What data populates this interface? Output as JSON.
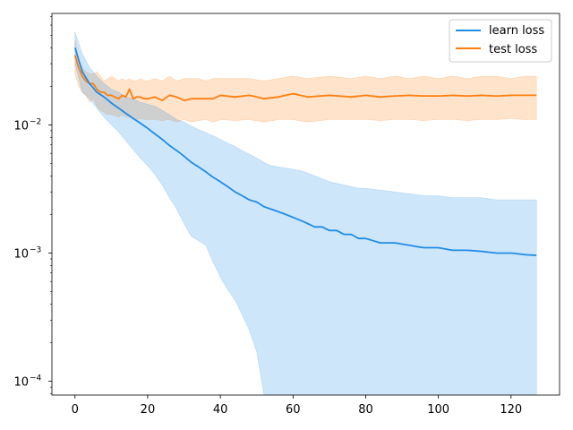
{
  "chart_data": {
    "type": "line",
    "title": "",
    "xlabel": "",
    "ylabel": "",
    "xlim": [
      -6.35,
      133.35
    ],
    "ylim": [
      7.8e-05,
      0.074
    ],
    "yscale": "log",
    "grid": false,
    "legend_position": "top-right",
    "x_ticks": [
      0,
      20,
      40,
      60,
      80,
      100,
      120
    ],
    "y_ticks": [
      {
        "value": 0.0001,
        "base": "10",
        "exp": "−4"
      },
      {
        "value": 0.001,
        "base": "10",
        "exp": "−3"
      },
      {
        "value": 0.01,
        "base": "10",
        "exp": "−2"
      }
    ],
    "x_tick_labels": [
      "0",
      "20",
      "40",
      "60",
      "80",
      "100",
      "120"
    ],
    "series": [
      {
        "name": "learn loss",
        "color": "#1f8ce8",
        "fill_color": "#1f8ce8",
        "knots_x": [
          0,
          2,
          4,
          6,
          8,
          10,
          12,
          14,
          16,
          18,
          20,
          22,
          24,
          26,
          28,
          30,
          32,
          34,
          36,
          38,
          40,
          42,
          44,
          46,
          48,
          50,
          52,
          54,
          56,
          58,
          60,
          62,
          64,
          66,
          68,
          70,
          72,
          74,
          76,
          78,
          80,
          84,
          88,
          92,
          96,
          100,
          104,
          108,
          112,
          116,
          120,
          124,
          127
        ],
        "mean": [
          0.04,
          0.026,
          0.021,
          0.018,
          0.0165,
          0.0148,
          0.0135,
          0.0123,
          0.0112,
          0.0103,
          0.0094,
          0.0085,
          0.0077,
          0.0069,
          0.0063,
          0.0057,
          0.0051,
          0.0047,
          0.0043,
          0.0039,
          0.0036,
          0.0033,
          0.003,
          0.0028,
          0.0026,
          0.0025,
          0.0023,
          0.0022,
          0.0021,
          0.002,
          0.0019,
          0.0018,
          0.0017,
          0.0016,
          0.0016,
          0.0015,
          0.0015,
          0.0014,
          0.0014,
          0.0013,
          0.0013,
          0.0012,
          0.0012,
          0.00115,
          0.0011,
          0.0011,
          0.00105,
          0.00105,
          0.00103,
          0.001,
          0.001,
          0.00097,
          0.00096
        ],
        "upper": [
          0.053,
          0.036,
          0.028,
          0.024,
          0.021,
          0.019,
          0.018,
          0.0165,
          0.016,
          0.015,
          0.0145,
          0.014,
          0.013,
          0.012,
          0.011,
          0.0105,
          0.0098,
          0.0092,
          0.0087,
          0.0082,
          0.0077,
          0.0072,
          0.0068,
          0.0063,
          0.0059,
          0.0055,
          0.0051,
          0.0048,
          0.0047,
          0.0046,
          0.0045,
          0.0044,
          0.0042,
          0.004,
          0.0038,
          0.0036,
          0.0035,
          0.0034,
          0.0033,
          0.0032,
          0.0032,
          0.0031,
          0.003,
          0.0029,
          0.0028,
          0.0028,
          0.0027,
          0.0027,
          0.0027,
          0.0026,
          0.0026,
          0.0026,
          0.0026
        ],
        "lower": [
          0.03,
          0.018,
          0.016,
          0.0135,
          0.0115,
          0.01,
          0.0088,
          0.0075,
          0.0064,
          0.0055,
          0.0048,
          0.0041,
          0.0034,
          0.0027,
          0.0022,
          0.0017,
          0.00135,
          0.00125,
          0.00115,
          0.00085,
          0.00065,
          0.00052,
          0.00043,
          0.00033,
          0.00025,
          0.00017,
          7.8e-05,
          7.8e-05,
          7.8e-05,
          7.8e-05,
          7.8e-05,
          7.8e-05,
          7.8e-05,
          7.8e-05,
          7.8e-05,
          7.8e-05,
          7.8e-05,
          7.8e-05,
          7.8e-05,
          7.8e-05,
          7.8e-05,
          7.8e-05,
          7.8e-05,
          7.8e-05,
          7.8e-05,
          7.8e-05,
          7.8e-05,
          7.8e-05,
          7.8e-05,
          7.8e-05,
          7.8e-05,
          7.8e-05,
          7.8e-05
        ]
      },
      {
        "name": "test loss",
        "color": "#ff7f0e",
        "fill_color": "#ff7f0e",
        "knots_x": [
          0,
          1,
          2,
          3,
          4,
          5,
          6,
          7,
          8,
          9,
          10,
          11,
          12,
          13,
          14,
          15,
          16,
          17,
          18,
          19,
          20,
          22,
          24,
          26,
          28,
          30,
          32,
          34,
          36,
          38,
          40,
          44,
          48,
          52,
          56,
          60,
          64,
          70,
          76,
          80,
          84,
          88,
          92,
          96,
          100,
          104,
          108,
          112,
          116,
          120,
          124,
          127
        ],
        "mean": [
          0.035,
          0.028,
          0.024,
          0.022,
          0.021,
          0.021,
          0.019,
          0.018,
          0.018,
          0.017,
          0.017,
          0.0165,
          0.016,
          0.017,
          0.0165,
          0.019,
          0.016,
          0.0165,
          0.0165,
          0.016,
          0.016,
          0.0165,
          0.0155,
          0.017,
          0.0165,
          0.0155,
          0.016,
          0.016,
          0.016,
          0.016,
          0.017,
          0.0165,
          0.017,
          0.016,
          0.0165,
          0.0175,
          0.0165,
          0.017,
          0.0165,
          0.017,
          0.0165,
          0.0168,
          0.017,
          0.0168,
          0.0168,
          0.017,
          0.0168,
          0.017,
          0.0168,
          0.017,
          0.017,
          0.017
        ],
        "upper": [
          0.046,
          0.032,
          0.028,
          0.026,
          0.025,
          0.025,
          0.026,
          0.024,
          0.022,
          0.023,
          0.024,
          0.023,
          0.022,
          0.023,
          0.022,
          0.023,
          0.022,
          0.022,
          0.023,
          0.022,
          0.022,
          0.023,
          0.022,
          0.024,
          0.022,
          0.023,
          0.023,
          0.023,
          0.022,
          0.023,
          0.023,
          0.023,
          0.023,
          0.022,
          0.023,
          0.024,
          0.023,
          0.024,
          0.023,
          0.024,
          0.023,
          0.024,
          0.023,
          0.024,
          0.023,
          0.024,
          0.023,
          0.024,
          0.024,
          0.023,
          0.024,
          0.024
        ],
        "lower": [
          0.025,
          0.02,
          0.018,
          0.017,
          0.015,
          0.016,
          0.014,
          0.013,
          0.0125,
          0.012,
          0.012,
          0.0118,
          0.0115,
          0.012,
          0.0115,
          0.0115,
          0.0112,
          0.011,
          0.0112,
          0.011,
          0.011,
          0.011,
          0.0108,
          0.011,
          0.0105,
          0.011,
          0.0105,
          0.0108,
          0.011,
          0.0105,
          0.011,
          0.0108,
          0.011,
          0.0105,
          0.011,
          0.011,
          0.0105,
          0.011,
          0.011,
          0.011,
          0.0108,
          0.011,
          0.011,
          0.0108,
          0.011,
          0.011,
          0.0108,
          0.011,
          0.011,
          0.0112,
          0.011,
          0.011
        ]
      }
    ]
  }
}
